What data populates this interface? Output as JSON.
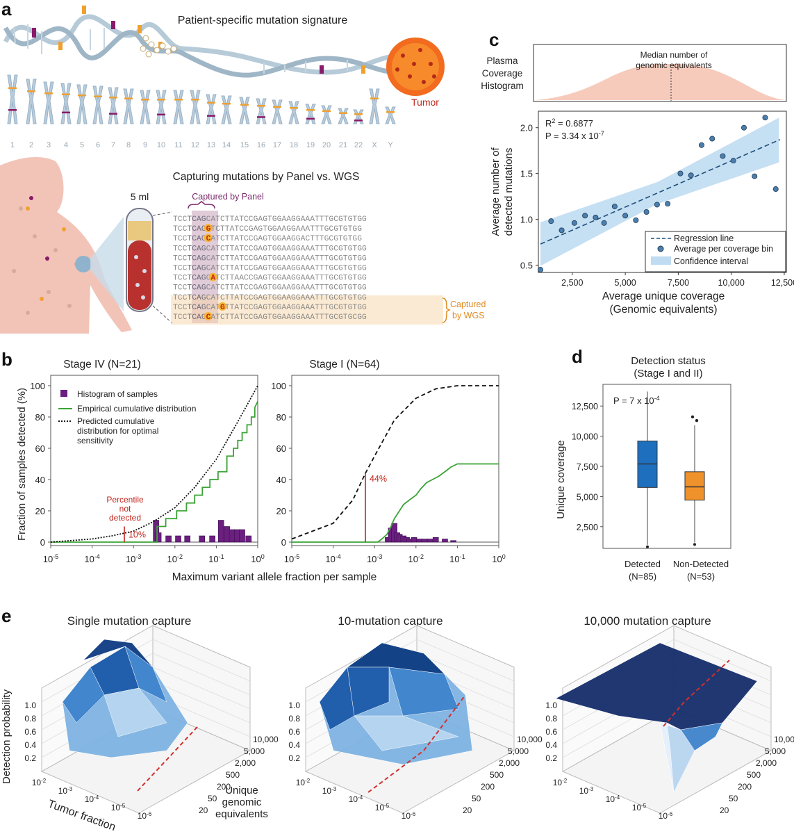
{
  "panel_labels": {
    "a": "a",
    "b": "b",
    "c": "c",
    "d": "d",
    "e": "e"
  },
  "panel_a": {
    "title": "Patient-specific mutation signature",
    "tumor_label": "Tumor",
    "chromosomes": [
      "1",
      "2",
      "3",
      "4",
      "5",
      "6",
      "7",
      "8",
      "9",
      "10",
      "11",
      "12",
      "13",
      "14",
      "15",
      "16",
      "17",
      "18",
      "19",
      "20",
      "21",
      "22",
      "X",
      "Y"
    ],
    "capture_title": "Capturing mutations by Panel vs. WGS",
    "volume": "5 ml",
    "captured_by_panel": "Captured by Panel",
    "captured_by_wgs_1": "Captured",
    "captured_by_wgs_2": "by WGS",
    "sequences": [
      {
        "pre": "TCC",
        "box": "TCAG",
        "post": "CATCTTATCCGAGTGGAAGGAAATTTGCGTGTGG",
        "mut": null
      },
      {
        "pre": "TCC",
        "box": "TCAG",
        "post": "GTCTTATCCGAGTGGAAGGAAATTTGCGTGTGG",
        "mut": "G"
      },
      {
        "pre": "TCC",
        "box": "TCAG",
        "post": "CATCTTATCCGAGTGGAAGGACTTTGCGTGTGG",
        "mut": "C"
      },
      {
        "pre": "TCC",
        "box": "TCAG",
        "post": "CATCTTATCCGAGTGGAAGGAAATTTGCGTGTGG",
        "mut": null
      },
      {
        "pre": "TCC",
        "box": "TCAG",
        "post": "CATCTTATCCGAGTGGAAGGAAATTTGCGTGTGG",
        "mut": null
      },
      {
        "pre": "TCC",
        "box": "TCAG",
        "post": "CATCTTATCCGAGTGGAAGGAAATTTGCGTGTGG",
        "mut": null
      },
      {
        "pre": "TCC",
        "box": "TCAG",
        "post": "CATCTTAACCGAGTGGAAGGAAATTTGCGTGTGG",
        "mut": "A"
      },
      {
        "pre": "TCC",
        "box": "TCAG",
        "post": "CATCTTATCCGAGTGGAAGGAAATTTGCGTGTGG",
        "mut": null
      },
      {
        "pre": "TCC",
        "box": "TCAG",
        "post": "CATCTTATCCGAGTGGAAGGAAATTTGCGTGTGG",
        "mut": null
      },
      {
        "pre": "TCC",
        "box": "TCAG",
        "post": "CATGTTATCCGAGTGGAAGGAAATTTGCGTGTGG",
        "mut": "G"
      },
      {
        "pre": "TCC",
        "box": "TCAG",
        "post": "CATCTTATCCGAGTGGAAGGAAATTTGCGTGCGG",
        "mut": "C"
      }
    ]
  },
  "panel_b": {
    "ylabel": "Fraction of samples detected (%)",
    "xlabel": "Maximum variant allele fraction per sample",
    "legend": {
      "histogram": "Histogram of samples",
      "empirical": "Empirical cumulative distribution",
      "predicted_1": "Predicted cumulative",
      "predicted_2": "distribution for optimal",
      "predicted_3": "sensitivity"
    },
    "annotation_left_1": "Percentile",
    "annotation_left_2": "not",
    "annotation_left_3": "detected",
    "annotation_left_value": "10%",
    "annotation_right_value": "44%",
    "yticks": [
      "0",
      "20",
      "40",
      "60",
      "80",
      "100"
    ],
    "xticks_base": [
      "10",
      "10",
      "10",
      "10",
      "10",
      "10"
    ],
    "xticks_exp": [
      "-5",
      "-4",
      "-3",
      "-2",
      "-1",
      "0"
    ],
    "left_title": "Stage IV (N=21)",
    "right_title": "Stage I (N=64)"
  },
  "panel_c": {
    "hist_label_1": "Plasma",
    "hist_label_2": "Coverage",
    "hist_label_3": "Histogram",
    "median_label_1": "Median number of",
    "median_label_2": "genomic equivalents",
    "r2": "R",
    "r2_value": " = 0.6877",
    "p_value": "P = 3.34 x 10",
    "p_exp": "-7",
    "ylabel_1": "Average number of",
    "ylabel_2": "detected mutations",
    "xlabel_1": "Average unique coverage",
    "xlabel_2": "(Genomic equivalents)",
    "yticks": [
      "0.5",
      "1.0",
      "1.5",
      "2.0"
    ],
    "xticks": [
      "2,500",
      "5,000",
      "7,500",
      "10,000",
      "12,500"
    ],
    "legend": {
      "line": "Regression line",
      "points": "Average per coverage bin",
      "ci": "Confidence interval"
    }
  },
  "panel_d": {
    "title_1": "Detection status",
    "title_2": "(Stage I and II)",
    "p_text": "P = 7 x 10",
    "p_exp": "-4",
    "ylabel": "Unique coverage",
    "yticks": [
      "2,500",
      "5,000",
      "7,500",
      "10,000",
      "12,500"
    ],
    "groups": [
      {
        "name": "Detected",
        "n": "(N=85)",
        "color": "#1f6fbf"
      },
      {
        "name": "Non-Detected",
        "n": "(N=53)",
        "color": "#f0922b"
      }
    ]
  },
  "panel_e": {
    "titles": [
      "Single mutation capture",
      "10-mutation capture",
      "10,000 mutation capture"
    ],
    "zlabel": "Detection probability",
    "xlabel": "Tumor fraction",
    "ylabel_1": "Unique",
    "ylabel_2": "genomic",
    "ylabel_3": "equivalents",
    "zticks": [
      "0.2",
      "0.4",
      "0.6",
      "0.8",
      "1.0"
    ],
    "yticks": [
      "20",
      "50",
      "200",
      "500",
      "2,000",
      "5,000",
      "10,000"
    ],
    "xticks_exp": [
      "-2",
      "-3",
      "-4",
      "-5",
      "-6"
    ]
  },
  "chart_data": [
    {
      "type": "scatter",
      "id": "panel-c",
      "xlabel": "Average unique coverage (Genomic equivalents)",
      "ylabel": "Average number of detected mutations",
      "xlim": [
        900,
        12600
      ],
      "ylim": [
        0.42,
        2.18
      ],
      "x": [
        1000,
        1500,
        2000,
        2600,
        3100,
        3600,
        4000,
        4500,
        5000,
        5500,
        6000,
        6500,
        7000,
        7600,
        8100,
        8600,
        9100,
        9600,
        10100,
        10600,
        11100,
        11600,
        12100
      ],
      "y": [
        0.45,
        0.98,
        0.88,
        0.96,
        1.04,
        1.02,
        0.96,
        1.14,
        1.04,
        0.99,
        1.08,
        1.16,
        1.17,
        1.5,
        1.48,
        1.81,
        1.88,
        1.69,
        1.64,
        2.0,
        1.47,
        2.11,
        1.33
      ],
      "regression": {
        "x": [
          1000,
          12300
        ],
        "y": [
          0.73,
          1.87
        ]
      },
      "r2": "0.6877"
    },
    {
      "type": "box",
      "id": "panel-d",
      "ylabel": "Unique coverage",
      "ylim": [
        700,
        14300
      ],
      "categories": [
        "Detected (N=85)",
        "Non-Detected (N=53)"
      ],
      "boxes": [
        {
          "whisker_low": 1000,
          "q1": 5750,
          "median": 7700,
          "q3": 9600,
          "whisker_high": 13700,
          "outliers": []
        },
        {
          "whisker_low": 1200,
          "q1": 4700,
          "median": 5800,
          "q3": 7050,
          "whisker_high": 10900,
          "outliers": [
            11300,
            11600
          ]
        }
      ]
    },
    {
      "type": "line",
      "id": "panel-b-left",
      "title": "Stage IV (N=21)",
      "xscale": "log",
      "xlim": [
        1e-05,
        1
      ],
      "ylim": [
        0,
        100
      ],
      "series": [
        {
          "name": "Empirical cumulative distribution",
          "x": [
            1e-05,
            0.0037,
            0.0037,
            0.006,
            0.006,
            0.011,
            0.011,
            0.019,
            0.019,
            0.03,
            0.03,
            0.046,
            0.046,
            0.07,
            0.07,
            0.11,
            0.11,
            0.18,
            0.18,
            0.26,
            0.26,
            0.33,
            0.33,
            0.42,
            0.42,
            0.55,
            0.55,
            0.7,
            0.7,
            0.85,
            0.85,
            1
          ],
          "y": [
            0,
            0,
            10,
            10,
            15,
            15,
            20,
            20,
            25,
            25,
            30,
            30,
            35,
            35,
            40,
            40,
            45,
            45,
            55,
            55,
            60,
            60,
            65,
            65,
            70,
            70,
            75,
            75,
            80,
            80,
            86,
            90
          ]
        },
        {
          "name": "Predicted cumulative distribution for optimal sensitivity",
          "x": [
            1e-05,
            0.0001,
            0.0003,
            0.001,
            0.003,
            0.01,
            0.03,
            0.1,
            0.3,
            1
          ],
          "y": [
            0,
            2,
            4,
            7,
            13,
            22,
            35,
            53,
            75,
            100
          ]
        },
        {
          "name": "Histogram of samples",
          "x": [
            0.0035,
            0.004,
            0.007,
            0.012,
            0.02,
            0.045,
            0.08,
            0.13,
            0.18,
            0.24,
            0.32,
            0.42,
            0.6
          ],
          "y": [
            14,
            6,
            4,
            4,
            4,
            4,
            4,
            14,
            10,
            8,
            8,
            8,
            4
          ]
        }
      ],
      "annotation": {
        "label": "10%",
        "x": 0.0006,
        "y": [
          0,
          10
        ]
      }
    },
    {
      "type": "line",
      "id": "panel-b-right",
      "title": "Stage I (N=64)",
      "xscale": "log",
      "xlim": [
        1e-05,
        1
      ],
      "ylim": [
        0,
        100
      ],
      "series": [
        {
          "name": "Empirical cumulative distribution",
          "x": [
            1e-05,
            0.0012,
            0.0015,
            0.002,
            0.0025,
            0.003,
            0.004,
            0.005,
            0.007,
            0.01,
            0.013,
            0.018,
            0.025,
            0.035,
            0.05,
            0.07,
            0.1,
            1
          ],
          "y": [
            0,
            0,
            2,
            5,
            10,
            15,
            20,
            24,
            27,
            30,
            34,
            38,
            40,
            42,
            45,
            48,
            50,
            50
          ]
        },
        {
          "name": "Predicted cumulative distribution for optimal sensitivity",
          "x": [
            1e-05,
            0.0001,
            0.0003,
            0.0006,
            0.001,
            0.003,
            0.01,
            0.03,
            0.1,
            1
          ],
          "y": [
            2,
            12,
            27,
            44,
            55,
            78,
            92,
            98,
            100,
            100
          ]
        },
        {
          "name": "Histogram of samples",
          "x": [
            0.0021,
            0.0025,
            0.003,
            0.0035,
            0.004,
            0.005,
            0.006,
            0.007,
            0.009,
            0.012,
            0.016,
            0.022,
            0.03,
            0.05,
            0.08
          ],
          "y": [
            3,
            9,
            12,
            6,
            5,
            4,
            3,
            2,
            3,
            2,
            2,
            2,
            3,
            2,
            1
          ]
        }
      ],
      "annotation": {
        "label": "44%",
        "x": 0.0006,
        "y": [
          0,
          44
        ]
      }
    }
  ]
}
